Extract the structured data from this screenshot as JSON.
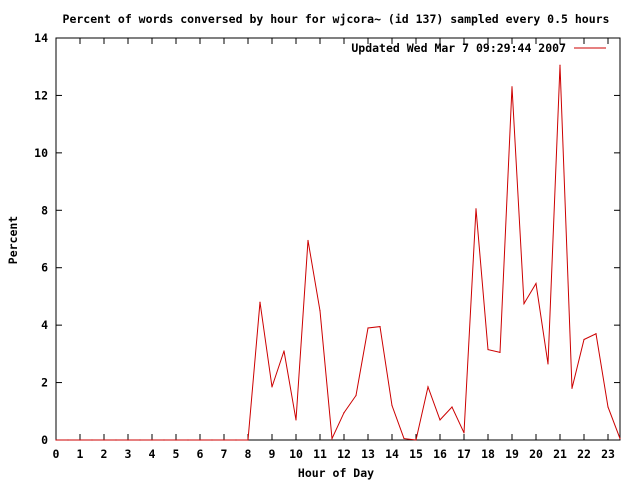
{
  "chart_data": {
    "type": "line",
    "title": "Percent of words conversed by hour for wjcora~ (id 137) sampled every 0.5 hours",
    "xlabel": "Hour of Day",
    "ylabel": "Percent",
    "xlim": [
      0,
      23.5
    ],
    "ylim": [
      0,
      14
    ],
    "x_ticks": [
      "0",
      "1",
      "2",
      "3",
      "4",
      "5",
      "6",
      "7",
      "8",
      "9",
      "10",
      "11",
      "12",
      "13",
      "14",
      "15",
      "16",
      "17",
      "18",
      "19",
      "20",
      "21",
      "22",
      "23"
    ],
    "y_ticks": [
      "0",
      "2",
      "4",
      "6",
      "8",
      "10",
      "12",
      "14"
    ],
    "grid": false,
    "legend_position": "top-right",
    "series": [
      {
        "name": "Updated Wed Mar  7 09:29:44 2007",
        "color": "#cc0000",
        "x": [
          0,
          0.5,
          1,
          1.5,
          2,
          2.5,
          3,
          3.5,
          4,
          4.5,
          5,
          5.5,
          6,
          6.5,
          7,
          7.5,
          8,
          8.5,
          9,
          9.5,
          10,
          10.5,
          11,
          11.5,
          12,
          12.5,
          13,
          13.5,
          14,
          14.5,
          15,
          15.5,
          16,
          16.5,
          17,
          17.5,
          18,
          18.5,
          19,
          19.5,
          20,
          20.5,
          21,
          21.5,
          22,
          22.5,
          23,
          23.5
        ],
        "y": [
          0,
          0,
          0,
          0,
          0,
          0,
          0,
          0,
          0,
          0,
          0,
          0,
          0,
          0,
          0,
          0,
          0,
          4.8,
          1.85,
          3.1,
          0.7,
          6.95,
          4.5,
          0.05,
          0.95,
          1.55,
          3.9,
          3.95,
          1.2,
          0.05,
          0,
          1.85,
          0.7,
          1.15,
          0.25,
          8.05,
          3.15,
          3.05,
          12.3,
          4.75,
          5.45,
          2.65,
          13.05,
          1.8,
          3.5,
          3.7,
          1.15,
          0.05
        ]
      }
    ]
  }
}
